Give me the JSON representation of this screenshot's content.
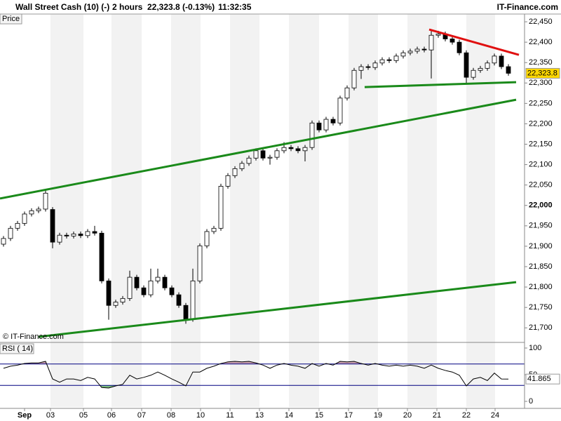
{
  "header": {
    "instrument": "Wall Street Cash (10) (-)",
    "period": "2 hours",
    "quote": "22,323.8 (-0.13%)",
    "time": "11:32:35",
    "brand": "IT-Finance.com"
  },
  "chart_data": [
    {
      "type": "candlestick",
      "title": "Price",
      "watermark": "© IT-Finance.com",
      "up_color": "#ffffff",
      "down_color": "#000000",
      "open": [
        21905,
        21919,
        21944,
        21956,
        21979,
        21987,
        21991,
        21990,
        21910,
        21927,
        21925,
        21930,
        21926,
        21936,
        21932,
        21815,
        21755,
        21763,
        21772,
        21824,
        21798,
        21781,
        21815,
        21824,
        21798,
        21781,
        21755,
        21721,
        21815,
        21901,
        21936,
        21944,
        22047,
        22073,
        22090,
        22103,
        22116,
        22134,
        22116,
        22118,
        22134,
        22142,
        22139,
        22134,
        22142,
        22202,
        22185,
        22211,
        22202,
        22263,
        22288,
        22331,
        22340,
        22338,
        22349,
        22357,
        22355,
        22366,
        22374,
        22378,
        22383,
        22381,
        22417,
        22420,
        22408,
        22400,
        22374,
        22314,
        22331,
        22336,
        22349,
        22366,
        22340
      ],
      "high": [
        21925,
        21950,
        21962,
        21985,
        21993,
        21997,
        22040,
        21996,
        21933,
        21933,
        21936,
        21936,
        21942,
        21950,
        21938,
        21821,
        21769,
        21778,
        21840,
        21830,
        21804,
        21845,
        21845,
        21830,
        21804,
        21787,
        21761,
        21845,
        21907,
        21942,
        21950,
        22053,
        22079,
        22096,
        22109,
        22122,
        22140,
        22140,
        22124,
        22140,
        22155,
        22148,
        22145,
        22148,
        22208,
        22208,
        22217,
        22217,
        22269,
        22294,
        22337,
        22346,
        22346,
        22355,
        22363,
        22363,
        22372,
        22380,
        22384,
        22389,
        22389,
        22430,
        22428,
        22426,
        22414,
        22406,
        22380,
        22337,
        22342,
        22355,
        22372,
        22372,
        22346
      ],
      "low": [
        21899,
        21913,
        21938,
        21950,
        21973,
        21981,
        21985,
        21895,
        21904,
        21919,
        21919,
        21920,
        21920,
        21926,
        21809,
        21720,
        21749,
        21757,
        21766,
        21792,
        21775,
        21775,
        21809,
        21792,
        21775,
        21749,
        21710,
        21715,
        21809,
        21895,
        21930,
        21938,
        22041,
        22067,
        22084,
        22097,
        22110,
        22110,
        22100,
        22112,
        22128,
        22133,
        22128,
        22108,
        22136,
        22179,
        22179,
        22196,
        22196,
        22257,
        22282,
        22310,
        22332,
        22332,
        22343,
        22349,
        22349,
        22360,
        22368,
        22372,
        22375,
        22311,
        22411,
        22402,
        22394,
        22368,
        22300,
        22308,
        22325,
        22330,
        22343,
        22334,
        22318
      ],
      "close": [
        21919,
        21944,
        21956,
        21979,
        21987,
        21991,
        22030,
        21910,
        21927,
        21925,
        21930,
        21926,
        21936,
        21932,
        21815,
        21755,
        21763,
        21772,
        21824,
        21798,
        21781,
        21815,
        21824,
        21798,
        21781,
        21755,
        21721,
        21815,
        21901,
        21936,
        21944,
        22047,
        22073,
        22090,
        22103,
        22116,
        22134,
        22116,
        22118,
        22134,
        22142,
        22139,
        22134,
        22142,
        22202,
        22185,
        22211,
        22202,
        22263,
        22288,
        22331,
        22340,
        22338,
        22349,
        22357,
        22355,
        22366,
        22374,
        22378,
        22383,
        22381,
        22417,
        22420,
        22408,
        22400,
        22374,
        22314,
        22331,
        22336,
        22349,
        22366,
        22340,
        22323.8
      ],
      "last_label": "22,323.8",
      "last_label_color": "#ffd700",
      "lines": [
        {
          "color": "#1a8a1a",
          "x": [
            0,
            73.6
          ],
          "y": [
            22017,
            22259
          ]
        },
        {
          "color": "#1a8a1a",
          "x": [
            5.5,
            73.6
          ],
          "y": [
            21678,
            21812
          ]
        },
        {
          "color": "#1a8a1a",
          "x": [
            52,
            73.6
          ],
          "y": [
            22290,
            22302
          ]
        },
        {
          "color": "#e01010",
          "x": [
            61.2,
            74
          ],
          "y": [
            22431,
            22369
          ]
        }
      ],
      "xlim": [
        0,
        74.8
      ],
      "ylim": [
        21666,
        22469
      ],
      "yticks": [
        {
          "value": 21700,
          "label": "21,700"
        },
        {
          "value": 21750,
          "label": "21,750"
        },
        {
          "value": 21800,
          "label": "21,800"
        },
        {
          "value": 21850,
          "label": "21,850"
        },
        {
          "value": 21900,
          "label": "21,900"
        },
        {
          "value": 21950,
          "label": "21,950"
        },
        {
          "value": 22000,
          "label": "22,000",
          "bold": true
        },
        {
          "value": 22050,
          "label": "22,050"
        },
        {
          "value": 22100,
          "label": "22,100"
        },
        {
          "value": 22150,
          "label": "22,150"
        },
        {
          "value": 22200,
          "label": "22,200"
        },
        {
          "value": 22250,
          "label": "22,250"
        },
        {
          "value": 22300,
          "label": "22,300"
        },
        {
          "value": 22350,
          "label": "22,350"
        },
        {
          "value": 22400,
          "label": "22,400"
        },
        {
          "value": 22450,
          "label": "22,450"
        }
      ]
    },
    {
      "type": "line",
      "title": "RSI ( 14)",
      "color": "#000000",
      "levels": [
        70,
        30
      ],
      "level_color": "#000080",
      "over_color": "#c9a0b0",
      "under_color": "#7fbf7f",
      "values": [
        62,
        66,
        68,
        71,
        72,
        72,
        75,
        42,
        36,
        42,
        42,
        39,
        45,
        42,
        26,
        25,
        29,
        32,
        49,
        42,
        45,
        49,
        55,
        49,
        42,
        36,
        29,
        55,
        55,
        62,
        66,
        71,
        74,
        75,
        74,
        75,
        72,
        68,
        62,
        68,
        71,
        68,
        66,
        62,
        71,
        66,
        71,
        68,
        75,
        74,
        75,
        71,
        68,
        71,
        68,
        66,
        68,
        66,
        68,
        66,
        62,
        68,
        62,
        58,
        55,
        49,
        29,
        42,
        45,
        39,
        53,
        42,
        41.865
      ],
      "ylim": [
        -10.5,
        107.9
      ],
      "yticks": [
        100,
        50,
        0
      ],
      "xlim": [
        0,
        74.8
      ],
      "xticks": [
        {
          "value": 3.5,
          "label": "Sep",
          "bold": true
        },
        {
          "value": 7.2,
          "label": "03"
        },
        {
          "value": 11.9,
          "label": "05"
        },
        {
          "value": 15.9,
          "label": "06"
        },
        {
          "value": 20.2,
          "label": "07"
        },
        {
          "value": 24.4,
          "label": "08"
        },
        {
          "value": 28.6,
          "label": "10"
        },
        {
          "value": 32.8,
          "label": "11"
        },
        {
          "value": 37,
          "label": "13"
        },
        {
          "value": 41.2,
          "label": "14"
        },
        {
          "value": 45.5,
          "label": "15"
        },
        {
          "value": 49.7,
          "label": "17"
        },
        {
          "value": 53.9,
          "label": "19"
        },
        {
          "value": 58.1,
          "label": "20"
        },
        {
          "value": 62.3,
          "label": "21"
        },
        {
          "value": 66.5,
          "label": "22"
        },
        {
          "value": 70.6,
          "label": "24"
        }
      ]
    }
  ]
}
